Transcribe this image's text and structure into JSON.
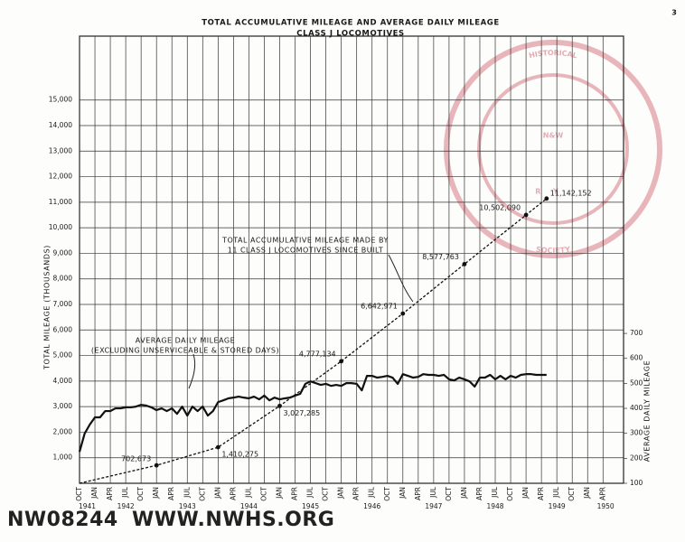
{
  "page": {
    "number": "3",
    "catalog_id": "NW08244",
    "website": "WWW.NWHS.ORG",
    "watermark": {
      "top": "HISTORICAL",
      "bottom": "SOCIETY",
      "emblem": "N&W",
      "emblem_lower": "RY"
    }
  },
  "chart_data": {
    "type": "line",
    "title": "TOTAL ACCUMULATIVE MILEAGE AND AVERAGE DAILY MILEAGE",
    "subtitle": "CLASS J LOCOMOTIVES",
    "y_label": "TOTAL MILEAGE (THOUSANDS)",
    "y2_label": "AVERAGE DAILY MILEAGE",
    "annotations": [
      {
        "lines": [
          "TOTAL ACCUMULATIVE MILEAGE MADE BY",
          "11 CLASS J LOCOMOTIVES SINCE BUILT"
        ]
      },
      {
        "lines": [
          "AVERAGE DAILY MILEAGE",
          "(EXCLUDING UNSERVICEABLE & STORED DAYS)"
        ]
      }
    ],
    "xlim": [
      "1941-10",
      "1950-08"
    ],
    "xticks": [
      {
        "value": "1941-10",
        "label": "OCT"
      },
      {
        "value": "1942-01",
        "label": "JAN"
      },
      {
        "value": "1942-04",
        "label": "APR"
      },
      {
        "value": "1942-07",
        "label": "JUL"
      },
      {
        "value": "1942-10",
        "label": "OCT"
      },
      {
        "value": "1943-01",
        "label": "JAN"
      },
      {
        "value": "1943-04",
        "label": "APR"
      },
      {
        "value": "1943-07",
        "label": "JUL"
      },
      {
        "value": "1943-10",
        "label": "OCT"
      },
      {
        "value": "1944-01",
        "label": "JAN"
      },
      {
        "value": "1944-04",
        "label": "APR"
      },
      {
        "value": "1944-07",
        "label": "JUL"
      },
      {
        "value": "1944-10",
        "label": "OCT"
      },
      {
        "value": "1945-01",
        "label": "JAN"
      },
      {
        "value": "1945-04",
        "label": "APR"
      },
      {
        "value": "1945-07",
        "label": "JUL"
      },
      {
        "value": "1945-10",
        "label": "OCT"
      },
      {
        "value": "1946-01",
        "label": "JAN"
      },
      {
        "value": "1946-04",
        "label": "APR"
      },
      {
        "value": "1946-07",
        "label": "JUL"
      },
      {
        "value": "1946-10",
        "label": "OCT"
      },
      {
        "value": "1947-01",
        "label": "JAN"
      },
      {
        "value": "1947-04",
        "label": "APR"
      },
      {
        "value": "1947-07",
        "label": "JUL"
      },
      {
        "value": "1947-10",
        "label": "OCT"
      },
      {
        "value": "1948-01",
        "label": "JAN"
      },
      {
        "value": "1948-04",
        "label": "APR"
      },
      {
        "value": "1948-07",
        "label": "JUL"
      },
      {
        "value": "1948-10",
        "label": "OCT"
      },
      {
        "value": "1949-01",
        "label": "JAN"
      },
      {
        "value": "1949-04",
        "label": "APR"
      },
      {
        "value": "1949-07",
        "label": "JUL"
      },
      {
        "value": "1949-10",
        "label": "OCT"
      },
      {
        "value": "1950-01",
        "label": "JAN"
      },
      {
        "value": "1950-04",
        "label": "APR"
      }
    ],
    "x_years": [
      1941,
      1942,
      1943,
      1944,
      1945,
      1946,
      1947,
      1948,
      1949,
      1950
    ],
    "ylim": [
      0,
      17500
    ],
    "yticks": [
      {
        "value": 1000,
        "label": "1,000"
      },
      {
        "value": 2000,
        "label": "2,000"
      },
      {
        "value": 3000,
        "label": "3,000"
      },
      {
        "value": 4000,
        "label": "4,000"
      },
      {
        "value": 5000,
        "label": "5,000"
      },
      {
        "value": 6000,
        "label": "6,000"
      },
      {
        "value": 7000,
        "label": "7,000"
      },
      {
        "value": 8000,
        "label": "8,000"
      },
      {
        "value": 9000,
        "label": "9,000"
      },
      {
        "value": 10000,
        "label": "10,000"
      },
      {
        "value": 11000,
        "label": "11,000"
      },
      {
        "value": 12000,
        "label": "12,000"
      },
      {
        "value": 13000,
        "label": "13,000"
      },
      {
        "value": 14000,
        "label": "14,000"
      },
      {
        "value": 15000,
        "label": "15,000"
      }
    ],
    "y2lim": [
      100,
      1890
    ],
    "y2ticks": [
      100,
      200,
      300,
      400,
      500,
      600,
      700
    ],
    "grid": true,
    "series": [
      {
        "color": "#111111",
        "style": "dashed",
        "x": [
          "1941-10",
          "1943-01",
          "1944-01",
          "1945-01",
          "1946-01",
          "1947-01",
          "1948-01",
          "1949-01",
          "1949-05"
        ],
        "values": [
          0,
          702.673,
          1410.275,
          3027.285,
          4777.134,
          6642.971,
          8577.763,
          10502.09,
          11142.152
        ],
        "value_labels": [
          null,
          "702,673",
          "1,410,275",
          "3,027,285",
          "4,777,134",
          "6,642,971",
          "8,577,763",
          "10,502,090",
          "11,142,152"
        ]
      },
      {
        "color": "#111111",
        "style": "solid",
        "axis": "y2",
        "x": [
          "1941-10",
          "1941-11",
          "1941-12",
          "1942-01",
          "1942-02",
          "1942-03",
          "1942-04",
          "1942-05",
          "1942-06",
          "1942-07",
          "1942-08",
          "1942-09",
          "1942-10",
          "1942-11",
          "1942-12",
          "1943-01",
          "1943-02",
          "1943-03",
          "1943-04",
          "1943-05",
          "1943-06",
          "1943-07",
          "1943-08",
          "1943-09",
          "1943-10",
          "1943-11",
          "1943-12",
          "1944-01",
          "1944-02",
          "1944-03",
          "1944-04",
          "1944-05",
          "1944-06",
          "1944-07",
          "1944-08",
          "1944-09",
          "1944-10",
          "1944-11",
          "1944-12",
          "1945-01",
          "1945-02",
          "1945-03",
          "1945-04",
          "1945-05",
          "1945-06",
          "1945-07",
          "1945-08",
          "1945-09",
          "1945-10",
          "1945-11",
          "1945-12",
          "1946-01",
          "1946-02",
          "1946-03",
          "1946-04",
          "1946-05",
          "1946-06",
          "1946-07",
          "1946-08",
          "1946-09",
          "1946-10",
          "1946-11",
          "1946-12",
          "1947-01",
          "1947-02",
          "1947-03",
          "1947-04",
          "1947-05",
          "1947-06",
          "1947-07",
          "1947-08",
          "1947-09",
          "1947-10",
          "1947-11",
          "1947-12",
          "1948-01",
          "1948-02",
          "1948-03",
          "1948-04",
          "1948-05",
          "1948-06",
          "1948-07",
          "1948-08",
          "1948-09",
          "1948-10",
          "1948-11",
          "1948-12",
          "1949-01",
          "1949-02",
          "1949-03",
          "1949-04",
          "1949-05"
        ],
        "values": [
          226,
          299,
          335,
          364,
          364,
          389,
          389,
          400,
          400,
          404,
          404,
          407,
          414,
          411,
          404,
          393,
          400,
          389,
          400,
          378,
          407,
          371,
          407,
          389,
          407,
          371,
          389,
          425,
          432,
          440,
          443,
          447,
          443,
          440,
          447,
          436,
          451,
          432,
          443,
          436,
          440,
          443,
          451,
          458,
          498,
          508,
          501,
          494,
          498,
          490,
          494,
          490,
          501,
          501,
          498,
          472,
          530,
          530,
          523,
          526,
          530,
          523,
          498,
          537,
          530,
          523,
          526,
          537,
          534,
          534,
          530,
          534,
          516,
          512,
          523,
          516,
          508,
          487,
          523,
          523,
          534,
          516,
          530,
          516,
          530,
          523,
          534,
          537,
          537,
          534,
          534,
          534
        ]
      }
    ]
  }
}
